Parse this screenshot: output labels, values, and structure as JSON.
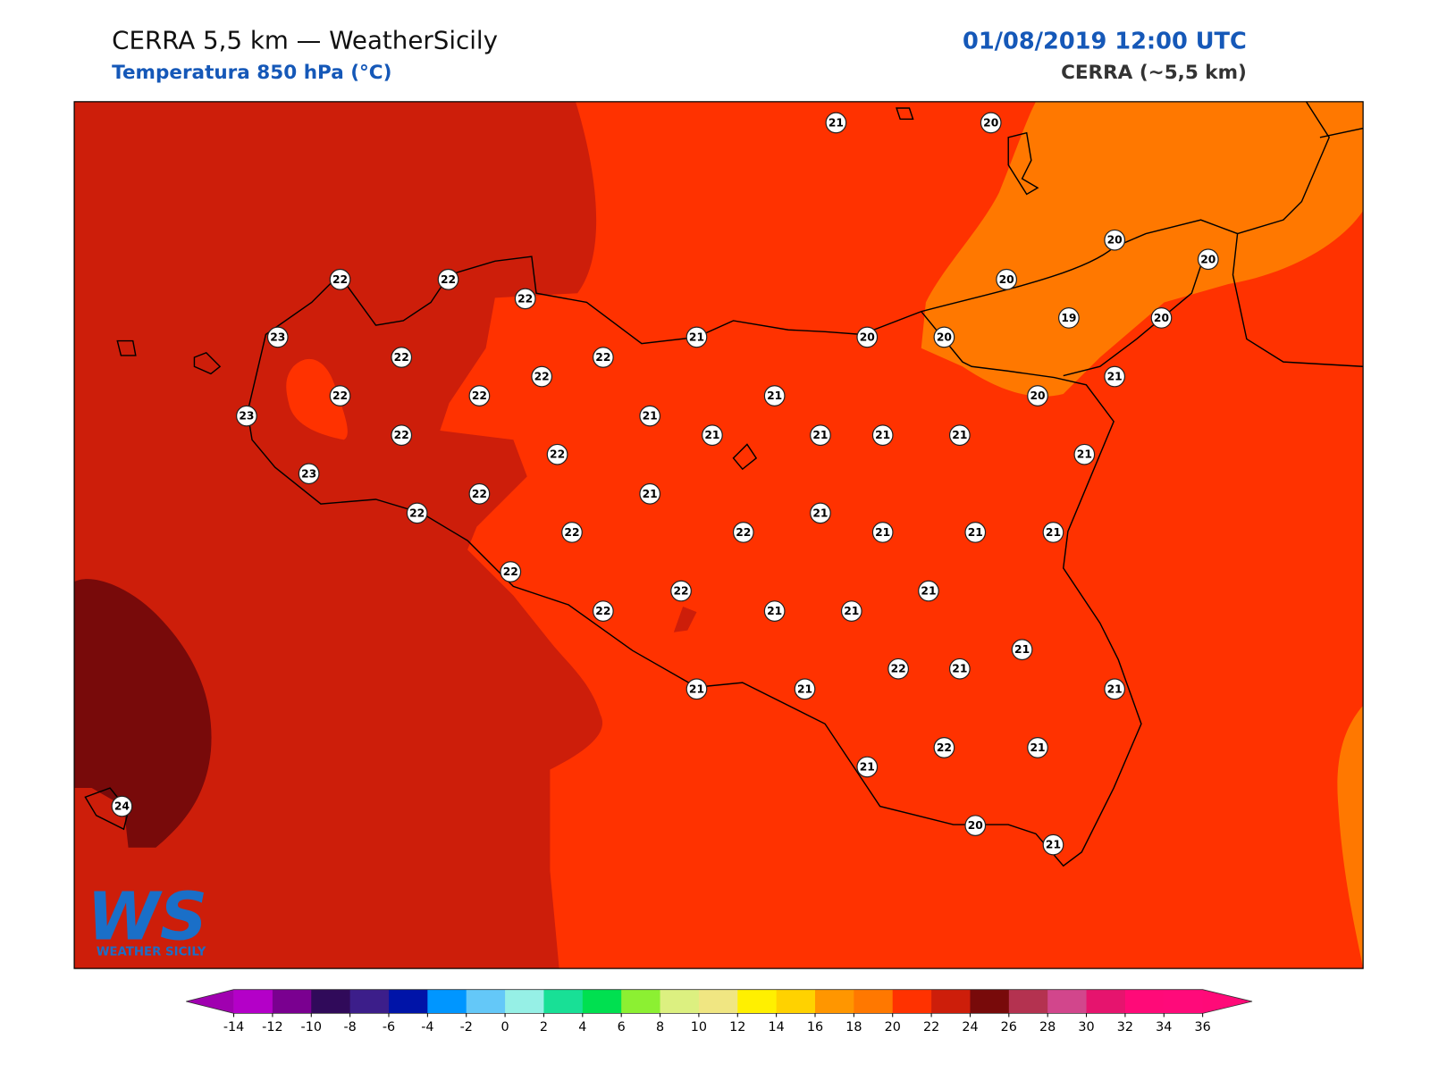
{
  "header": {
    "title": "CERRA 5,5 km — WeatherSicily",
    "subtitle": "Temperatura 850 hPa (°C)",
    "datetime": "01/08/2019 12:00 UTC",
    "model": "CERRA (~5,5 km)"
  },
  "stations": [
    21,
    20,
    20,
    20,
    22,
    22,
    22,
    20,
    19,
    20,
    23,
    21,
    20,
    20,
    22,
    22,
    22,
    21,
    22,
    22,
    21,
    20,
    23,
    21,
    22,
    21,
    21,
    21,
    21,
    22,
    21,
    23,
    22,
    21,
    22,
    21,
    22,
    22,
    21,
    21,
    21,
    22,
    22,
    21,
    22,
    21,
    21,
    21,
    22,
    21,
    21,
    21,
    21,
    22,
    21,
    21,
    24,
    20,
    21
  ],
  "colorbar": {
    "ticks": [
      -14,
      -12,
      -10,
      -8,
      -6,
      -4,
      -2,
      0,
      2,
      4,
      6,
      8,
      10,
      12,
      14,
      16,
      18,
      20,
      22,
      24,
      26,
      28,
      30,
      32,
      34,
      36
    ],
    "colors": [
      "#b400c8",
      "#7a0090",
      "#300a5a",
      "#3c1e8a",
      "#0014a8",
      "#0096ff",
      "#64c8f8",
      "#96f0e6",
      "#18e096",
      "#00e050",
      "#8cf032",
      "#dcf080",
      "#f0e682",
      "#fff000",
      "#ffd200",
      "#ff9600",
      "#ff7800",
      "#ff3200",
      "#cd1e0a",
      "#780a0a",
      "#b43250",
      "#d2468c",
      "#e6146e",
      "#ff0a78",
      "#ff0a7a"
    ],
    "under_color": "#a000b0",
    "over_color": "#ff0a78"
  },
  "logo": {
    "mark": "WS",
    "name": "WEATHER SICILY"
  }
}
